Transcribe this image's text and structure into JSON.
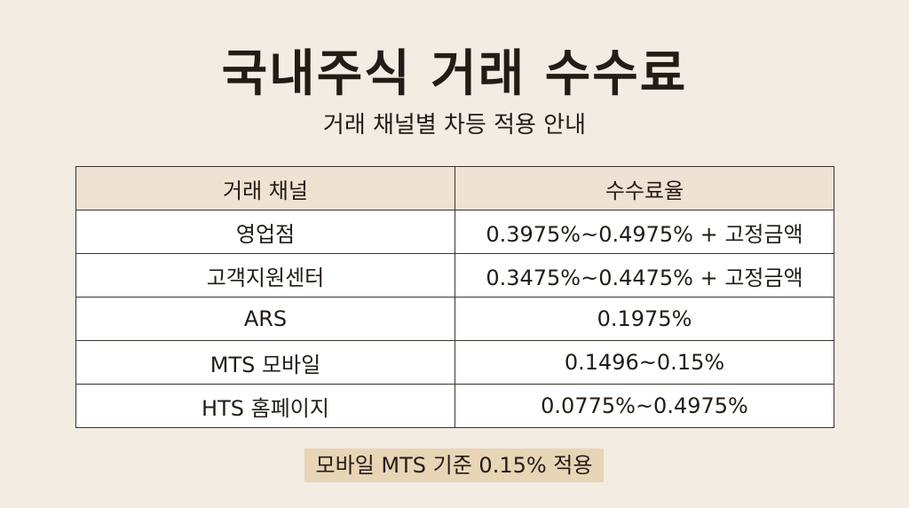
{
  "header": {
    "title": "국내주식 거래 수수료",
    "subtitle": "거래 채널별 차등 적용 안내"
  },
  "table": {
    "columns": [
      "거래 채널",
      "수수료율"
    ],
    "rows": [
      [
        "영업점",
        "0.3975%~0.4975% + 고정금액"
      ],
      [
        "고객지원센터",
        "0.3475%~0.4475% + 고정금액"
      ],
      [
        "ARS",
        "0.1975%"
      ],
      [
        "MTS 모바일",
        "0.1496~0.15%"
      ],
      [
        "HTS 홈페이지",
        "0.0775%~0.4975%"
      ]
    ]
  },
  "footer": {
    "note": "모바일 MTS 기준 0.15% 적용"
  }
}
